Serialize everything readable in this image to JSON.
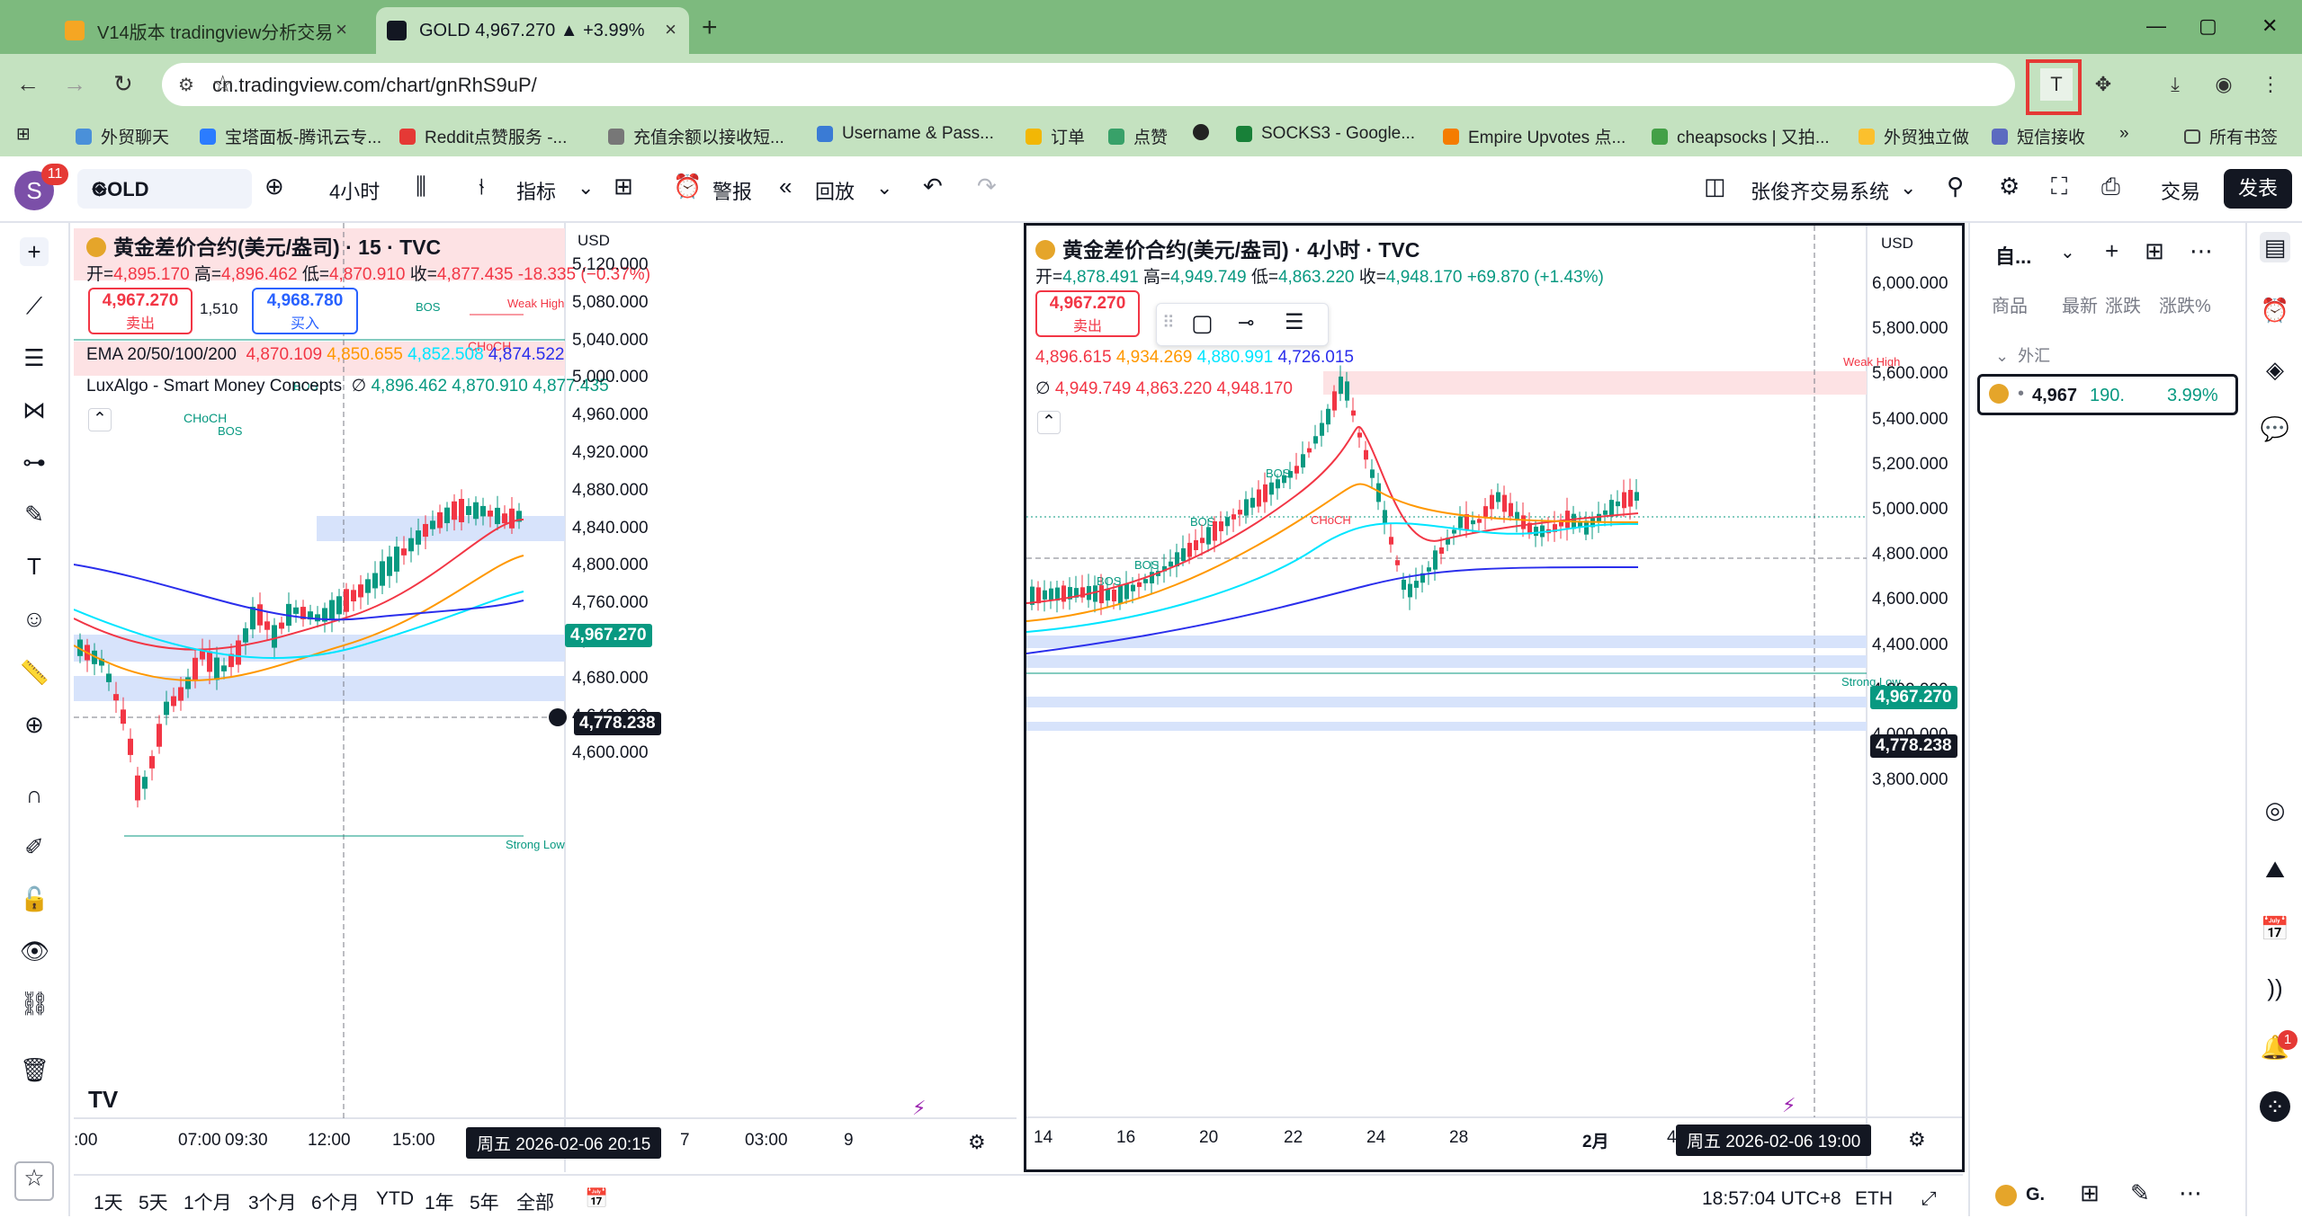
{
  "browser": {
    "tabs": [
      {
        "title": "V14版本 tradingview分析交易",
        "close": "×"
      },
      {
        "title": "GOLD 4,967.270 ▲ +3.99% ",
        "close": "×"
      }
    ],
    "new_tab": "+",
    "window_controls": [
      "—",
      "▢",
      "✕"
    ],
    "url": "cn.tradingview.com/chart/gnRhS9uP/",
    "bookmarks": [
      "外贸聊天",
      "宝塔面板-腾讯云专...",
      "Reddit点赞服务 -...",
      "充值余额以接收短...",
      "Username & Pass...",
      "订单",
      "点赞",
      "",
      "SOCKS3 - Google...",
      "Empire Upvotes 点...",
      "cheapsocks | 又拍...",
      "外贸独立做",
      "短信接收"
    ],
    "bookmarks_more": "»",
    "all_bookmarks": "所有书签",
    "extension_t": "T"
  },
  "toolbar": {
    "avatar": "S",
    "notifications": "11",
    "symbol": "GOLD",
    "interval": "4小时",
    "indicators": "指标",
    "alert": "警报",
    "replay": "回放",
    "layout_name": "张俊齐交易系统",
    "trade": "交易",
    "publish": "发表"
  },
  "left_chart": {
    "title": "黄金差价合约(美元/盎司) · 15 · TVC",
    "ohlc": {
      "o_label": "开=",
      "o": "4,895.170",
      "h_label": "高=",
      "h": "4,896.462",
      "l_label": "低=",
      "l": "4,870.910",
      "c_label": "收=",
      "c": "4,877.435",
      "chg": "-18.335 (−0.37%)"
    },
    "sell_price": "4,967.270",
    "sell_label": "卖出",
    "spread": "1,510",
    "buy_price": "4,968.780",
    "buy_label": "买入",
    "ema_label": "EMA 20/50/100/200",
    "ema": [
      "4,870.109",
      "4,850.655",
      "4,852.508",
      "4,874.522"
    ],
    "smc_label": "LuxAlgo - Smart Money Concepts",
    "smc_symbol": "∅",
    "smc": [
      "4,896.462",
      "4,870.910",
      "4,877.435"
    ],
    "currency": "USD",
    "price_axis": [
      "5,120.000",
      "5,080.000",
      "5,040.000",
      "5,000.000",
      "4,960.000",
      "4,920.000",
      "4,880.000",
      "4,840.000",
      "4,800.000",
      "4,760.000",
      "4,720.000",
      "4,680.000",
      "4,640.000",
      "4,600.000"
    ],
    "last_price": "4,967.270",
    "cross_price": "4,778.238",
    "time_axis": [
      ":00",
      "07:00",
      "09:30",
      "12:00",
      "15:00",
      "7",
      "03:00",
      "9"
    ],
    "cursor_time": "周五 2026-02-06   20:15",
    "labels": {
      "choch1": "CHoCH",
      "choch2": "CHoCH",
      "choch3": "CHoCH",
      "bos1": "BOS",
      "bos2": "BOS",
      "bos3": "BOS",
      "weak_high": "Weak High",
      "strong_low": "Strong Low"
    },
    "logo": "TV"
  },
  "right_chart": {
    "title": "黄金差价合约(美元/盎司) · 4小时 · TVC",
    "ohlc": {
      "o_label": "开=",
      "o": "4,878.491",
      "h_label": "高=",
      "h": "4,949.749",
      "l_label": "低=",
      "l": "4,863.220",
      "c_label": "收=",
      "c": "4,948.170",
      "chg": "+69.870 (+1.43%)"
    },
    "sell_price": "4,967.270",
    "sell_label": "卖出",
    "ema": [
      "4,896.615",
      "4,934.269",
      "4,880.991",
      "4,726.015"
    ],
    "smc_symbol": "∅",
    "smc": [
      "4,949.749",
      "4,863.220",
      "4,948.170"
    ],
    "currency": "USD",
    "price_axis": [
      "6,000.000",
      "5,800.000",
      "5,600.000",
      "5,400.000",
      "5,200.000",
      "5,000.000",
      "4,800.000",
      "4,600.000",
      "4,400.000",
      "4,200.000",
      "4,000.000",
      "3,800.000"
    ],
    "last_price": "4,967.270",
    "cross_price": "4,778.238",
    "time_axis": [
      "14",
      "16",
      "20",
      "22",
      "24",
      "28",
      "2月",
      "4"
    ],
    "cursor_time": "周五 2026-02-06    19:00",
    "labels": {
      "choch": "CHoCH",
      "bos1": "BOS",
      "bos2": "BOS",
      "bos3": "BOS",
      "bos4": "BOS",
      "weak_high": "Weak High",
      "strong_low": "Strong Low"
    }
  },
  "bottom": {
    "ranges": [
      "1天",
      "5天",
      "1个月",
      "3个月",
      "6个月",
      "YTD",
      "1年",
      "5年",
      "全部"
    ],
    "clock": "18:57:04 UTC+8",
    "pair": "ETH"
  },
  "watchlist": {
    "title": "自...",
    "columns": [
      "商品",
      "最新",
      "涨跌",
      "涨跌%"
    ],
    "section": "外汇",
    "row": {
      "last": "4,967",
      "chg": "190.",
      "pct": "3.99%"
    },
    "bottom_symbol": "G."
  },
  "right_toolbar": {
    "alert_badge": "1"
  }
}
